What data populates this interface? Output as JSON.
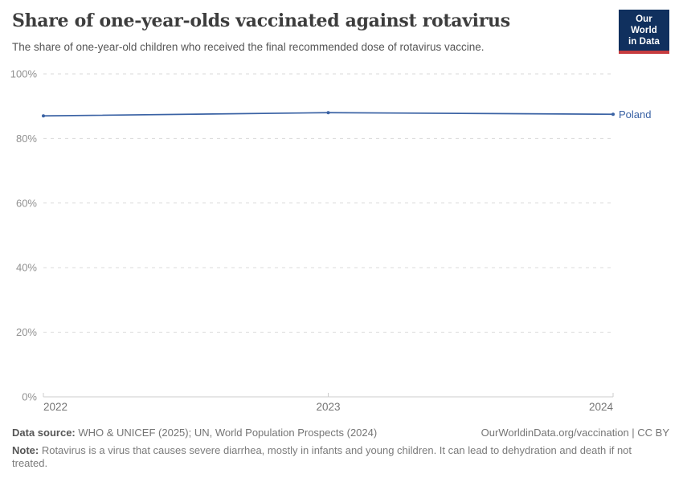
{
  "header": {
    "title": "Share of one-year-olds vaccinated against rotavirus",
    "subtitle": "The share of one-year-old children who received the final recommended dose of rotavirus vaccine.",
    "logo": {
      "line1": "Our World",
      "line2": "in Data",
      "bg_color": "#10305e",
      "accent_color": "#c63c3f"
    }
  },
  "chart_data": {
    "type": "line",
    "title": "Share of one-year-olds vaccinated against rotavirus",
    "x": [
      "2022",
      "2023",
      "2024"
    ],
    "series": [
      {
        "name": "Poland",
        "values": [
          87,
          88,
          87.5
        ],
        "color": "#3a62a4"
      }
    ],
    "xlabel": "",
    "ylabel": "",
    "ylim": [
      0,
      100
    ],
    "yticks": [
      0,
      20,
      40,
      60,
      80,
      100
    ],
    "ytick_suffix": "%",
    "grid": "dashed horizontal",
    "legend_position": "end-of-line label",
    "entity_label": "Poland",
    "colors": {
      "line": "#3a62a4",
      "gridline": "#dadada",
      "axis": "#cccccc",
      "ytick_label": "#919191",
      "xtick_label": "#757575"
    }
  },
  "footer": {
    "source_label": "Data source:",
    "source_text": " WHO & UNICEF (2025); UN, World Population Prospects (2024)",
    "link_text": "OurWorldinData.org/vaccination | CC BY",
    "note_label": "Note:",
    "note_text": " Rotavirus is a virus that causes severe diarrhea, mostly in infants and young children. It can lead to dehydration and death if not treated."
  }
}
